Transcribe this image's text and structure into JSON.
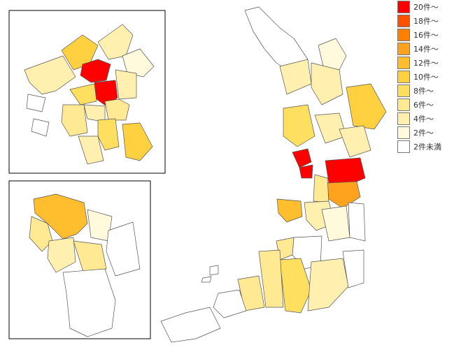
{
  "legend": {
    "items": [
      {
        "label": "20件～",
        "color": "#ff0000"
      },
      {
        "label": "18件～",
        "color": "#ff5000"
      },
      {
        "label": "16件～",
        "color": "#ff8000"
      },
      {
        "label": "14件～",
        "color": "#ffa21e"
      },
      {
        "label": "12件～",
        "color": "#ffbe2e"
      },
      {
        "label": "10件～",
        "color": "#ffd040"
      },
      {
        "label": "8件～",
        "color": "#ffdf60"
      },
      {
        "label": "6件～",
        "color": "#ffe993"
      },
      {
        "label": "4件～",
        "color": "#fff0b0"
      },
      {
        "label": "2件～",
        "color": "#fffadb"
      },
      {
        "label": "2件未満",
        "color": "#ffffff"
      }
    ]
  }
}
